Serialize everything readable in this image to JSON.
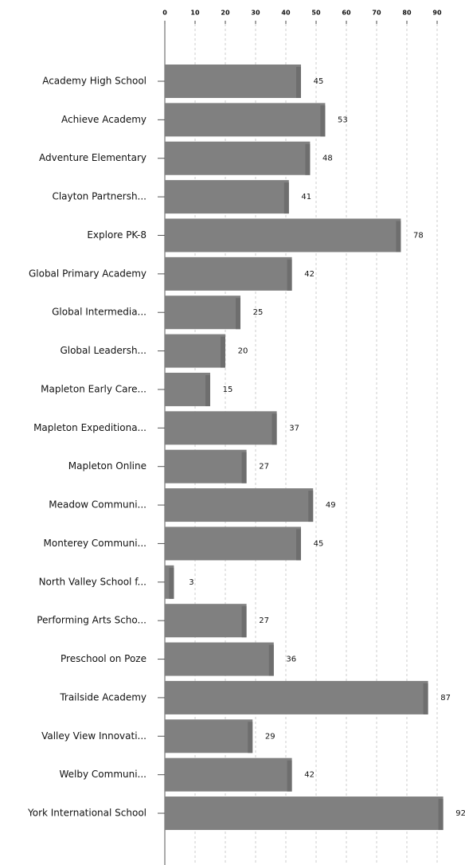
{
  "chart_data": {
    "type": "bar",
    "orientation": "horizontal",
    "categories": [
      "Academy High School",
      "Achieve Academy",
      "Adventure Elementary",
      "Clayton Partnersh...",
      "Explore PK-8",
      "Global Primary Academy",
      "Global Intermedia...",
      "Global Leadersh...",
      "Mapleton Early Care...",
      "Mapleton Expeditiona...",
      "Mapleton Online",
      "Meadow Communi...",
      "Monterey Communi...",
      "North Valley School f...",
      "Performing Arts Scho...",
      "Preschool on Poze",
      "Trailside Academy",
      "Valley View Innovati...",
      "Welby Communi...",
      "York International School"
    ],
    "values": [
      45,
      53,
      48,
      41,
      78,
      42,
      25,
      20,
      15,
      37,
      27,
      49,
      45,
      3,
      27,
      36,
      87,
      29,
      42,
      92
    ],
    "color": "#808080",
    "xlim": [
      0,
      100
    ],
    "xticks": [
      0,
      10,
      20,
      30,
      40,
      50,
      60,
      70,
      80,
      90
    ],
    "grid": true
  }
}
